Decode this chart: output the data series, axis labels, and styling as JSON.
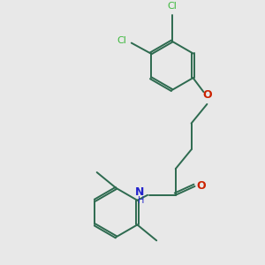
{
  "bg_color": "#e8e8e8",
  "bond_color": "#2d6a4f",
  "cl_color": "#3db83d",
  "o_color": "#cc2200",
  "n_color": "#2222cc",
  "lw": 1.4,
  "dbo": 0.012,
  "figsize": [
    3.0,
    3.0
  ],
  "dpi": 100,
  "xlim": [
    0,
    3.0
  ],
  "ylim": [
    0,
    3.0
  ]
}
